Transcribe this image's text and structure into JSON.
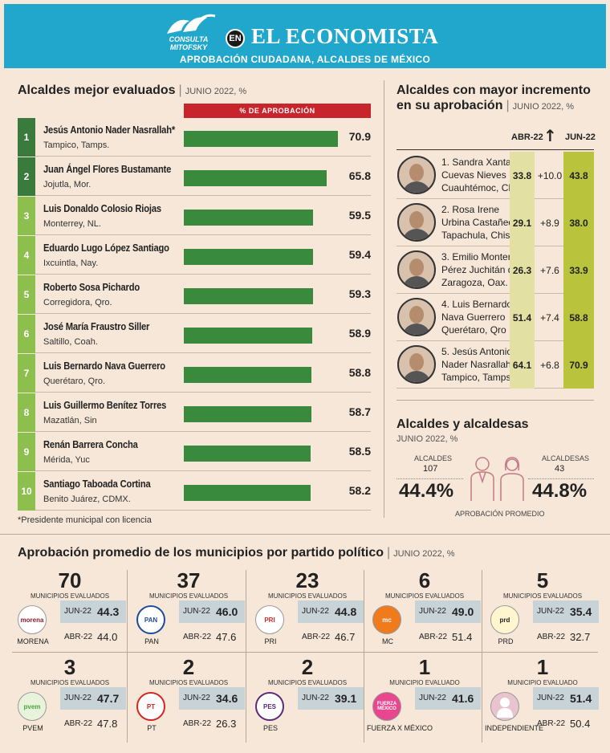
{
  "header": {
    "logo_text": "CONSULTA MITOFSKY",
    "en": "EN",
    "paper": "EL ECONOMISTA",
    "subtitle": "APROBACIÓN CIUDADANA, ALCALDES DE MÉXICO"
  },
  "colors": {
    "header_blue": "#22a7cc",
    "dark_green": "#3a7a3c",
    "light_green": "#8cbf4e",
    "bar_green": "#3a8a3e",
    "red": "#c8242c"
  },
  "ranking": {
    "title": "Alcaldes mejor evaluados",
    "period": "JUNIO 2022, %",
    "legend": "% DE APROBACIÓN",
    "footnote": "*Presidente municipal con licencia",
    "chart_data": {
      "type": "bar",
      "title": "Alcaldes mejor evaluados",
      "ylabel": "% de aprobación",
      "xlim": [
        0,
        80
      ],
      "items": [
        {
          "rank": "1",
          "name": "Jesús Antonio Nader Nasrallah*",
          "place": "Tampico, Tamps.",
          "value": 70.9
        },
        {
          "rank": "2",
          "name": "Juan Ángel Flores Bustamante",
          "place": "Jojutla, Mor.",
          "value": 65.8
        },
        {
          "rank": "3",
          "name": "Luis Donaldo Colosio Riojas",
          "place": "Monterrey, NL.",
          "value": 59.5
        },
        {
          "rank": "4",
          "name": "Eduardo Lugo López Santiago",
          "place": "Ixcuintla, Nay.",
          "value": 59.4
        },
        {
          "rank": "5",
          "name": "Roberto Sosa Pichardo",
          "place": "Corregidora, Qro.",
          "value": 59.3
        },
        {
          "rank": "6",
          "name": "José María Fraustro Siller",
          "place": "Saltillo, Coah.",
          "value": 58.9
        },
        {
          "rank": "7",
          "name": "Luis Bernardo Nava Guerrero",
          "place": "Querétaro, Qro.",
          "value": 58.8
        },
        {
          "rank": "8",
          "name": "Luis Guillermo Benítez Torres",
          "place": "Mazatlán, Sin",
          "value": 58.7
        },
        {
          "rank": "9",
          "name": "Renán Barrera Concha",
          "place": "Mérida, Yuc",
          "value": 58.5
        },
        {
          "rank": "10",
          "name": "Santiago Taboada Cortina",
          "place": "Benito Juárez, CDMX.",
          "value": 58.2
        }
      ]
    }
  },
  "increase": {
    "title1": "Alcaldes con mayor incremento",
    "title2": "en su aprobación",
    "period": "JUNIO 2022, %",
    "col_abr": "ABR-22",
    "col_jun": "JUN-22",
    "arrow": "↑",
    "items": [
      {
        "l1": "1. Sandra Xantall",
        "l2": "Cuevas Nieves",
        "l3": "Cuauhtémoc, CDMX.",
        "abr": "33.8",
        "delta": "+10.0",
        "jun": "43.8"
      },
      {
        "l1": "2. Rosa Irene",
        "l2": "Urbina Castañeda",
        "l3": "Tapachula, Chis.",
        "abr": "29.1",
        "delta": "+8.9",
        "jun": "38.0"
      },
      {
        "l1": "3. Emilio Montero",
        "l2": "Pérez Juchitán de",
        "l3": "Zaragoza, Oax.",
        "abr": "26.3",
        "delta": "+7.6",
        "jun": "33.9"
      },
      {
        "l1": "4. Luis Bernardo",
        "l2": "Nava Guerrero",
        "l3": "Querétaro, Qro",
        "abr": "51.4",
        "delta": "+7.4",
        "jun": "58.8"
      },
      {
        "l1": "5. Jesús Antonio",
        "l2": "Nader Nasrallah",
        "l3": "Tampico, Tamps",
        "abr": "64.1",
        "delta": "+6.8",
        "jun": "70.9"
      }
    ]
  },
  "gender": {
    "title": "Alcaldes y alcaldesas",
    "period": "JUNIO 2022, %",
    "men_label": "ALCALDES",
    "men_count": "107",
    "men_pct": "44.4%",
    "women_label": "ALCALDESAS",
    "women_count": "43",
    "women_pct": "44.8%",
    "avg_label": "APROBACIÓN PROMEDIO"
  },
  "parties": {
    "title": "Aprobación promedio de los municipios por partido político",
    "period": "JUNIO 2022, %",
    "jun_label": "JUN-22",
    "abr_label": "ABR-22",
    "items": [
      {
        "count": "70",
        "eval": "MUNICIPIOS EVALUADOS",
        "name": "MORENA",
        "logo": "morena",
        "jun": "44.3",
        "abr": "44.0",
        "color": "#8b1e2b"
      },
      {
        "count": "37",
        "eval": "MUNICIPIOS EVALUADOS",
        "name": "PAN",
        "logo": "PAN",
        "jun": "46.0",
        "abr": "47.6",
        "color": "#1d4d9c"
      },
      {
        "count": "23",
        "eval": "MUNICIPIOS EVALUADOS",
        "name": "PRI",
        "logo": "PRI",
        "jun": "44.8",
        "abr": "46.7",
        "color": "#d22a2a"
      },
      {
        "count": "6",
        "eval": "MUNICIPIOS EVALUADOS",
        "name": "MC",
        "logo": "mc",
        "jun": "49.0",
        "abr": "51.4",
        "color": "#f07b1d"
      },
      {
        "count": "5",
        "eval": "MUNICIPIOS EVALUADOS",
        "name": "PRD",
        "logo": "prd",
        "jun": "35.4",
        "abr": "32.7",
        "color": "#f2c31b"
      },
      {
        "count": "3",
        "eval": "MUNICIPIOS EVALUADOS",
        "name": "PVEM",
        "logo": "pvem",
        "jun": "47.7",
        "abr": "47.8",
        "color": "#4aa83a"
      },
      {
        "count": "2",
        "eval": "MUNICIPIOS EVALUADOS",
        "name": "PT",
        "logo": "PT",
        "jun": "34.6",
        "abr": "26.3",
        "color": "#d8231f"
      },
      {
        "count": "2",
        "eval": "MUNICIPIOS EVALUADOS",
        "name": "PES",
        "logo": "PES",
        "jun": "39.1",
        "abr": "",
        "color": "#5a2a7a"
      },
      {
        "count": "1",
        "eval": "MUNICIPIO EVALUADO",
        "name": "FUERZA X MÉXICO",
        "logo": "FUERZA MÉXICO",
        "jun": "41.6",
        "abr": "",
        "color": "#e8478f"
      },
      {
        "count": "1",
        "eval": "MUNICIPIO EVALUADO",
        "name": "INDEPENDIENTE",
        "logo": "",
        "jun": "51.4",
        "abr": "50.4",
        "color": "#e9c4cf"
      }
    ]
  }
}
